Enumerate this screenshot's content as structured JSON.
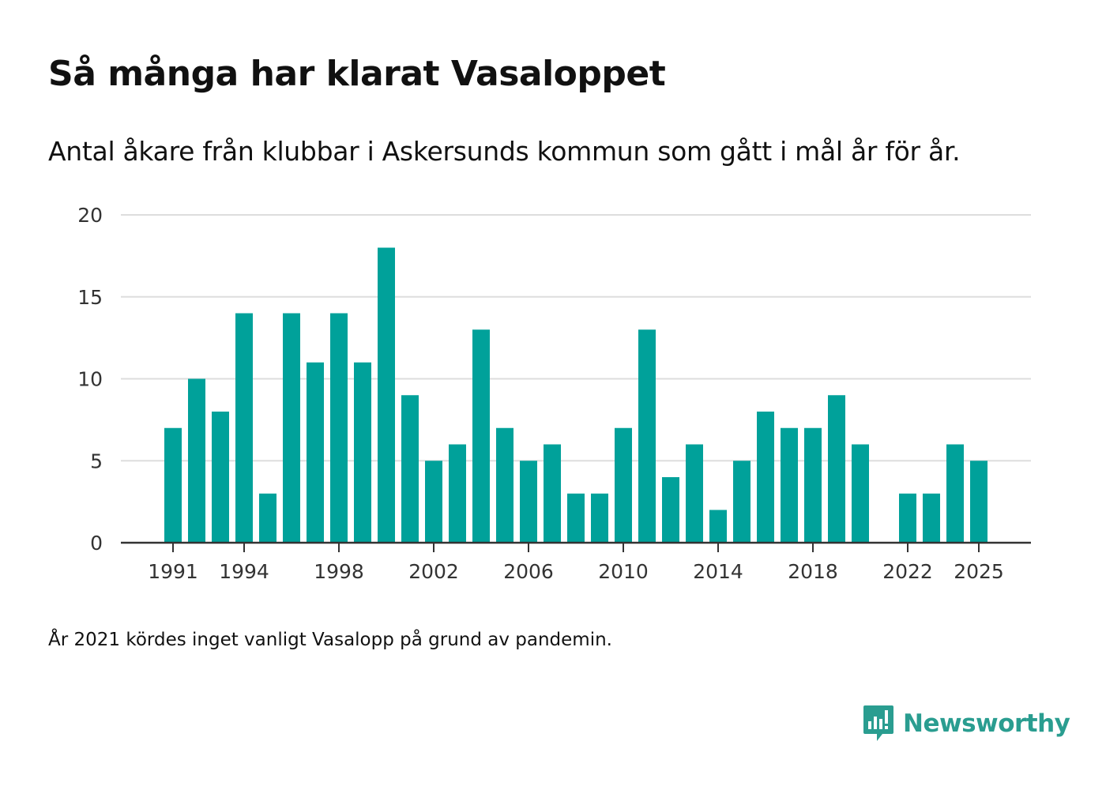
{
  "title": "Så många har klarat Vasaloppet",
  "subtitle": "Antal åkare från klubbar i Askersunds kommun som gått i mål år för år.",
  "note": "År 2021 kördes inget vanligt Vasalopp på grund av pandemin.",
  "brand": {
    "name": "Newsworthy",
    "icon": "newsworthy-logo-icon",
    "color": "#2a9d90"
  },
  "colors": {
    "bar": "#00a19a",
    "grid": "#dddddd",
    "axis": "#333333"
  },
  "chart_data": {
    "type": "bar",
    "title": "Så många har klarat Vasaloppet",
    "xlabel": "",
    "ylabel": "",
    "categories": [
      1991,
      1992,
      1993,
      1994,
      1995,
      1996,
      1997,
      1998,
      1999,
      2000,
      2001,
      2002,
      2003,
      2004,
      2005,
      2006,
      2007,
      2008,
      2009,
      2010,
      2011,
      2012,
      2013,
      2014,
      2015,
      2016,
      2017,
      2018,
      2019,
      2020,
      2021,
      2022,
      2023,
      2024,
      2025
    ],
    "values": [
      7,
      10,
      8,
      14,
      3,
      14,
      11,
      14,
      11,
      18,
      9,
      5,
      6,
      13,
      7,
      5,
      6,
      3,
      3,
      7,
      13,
      4,
      6,
      2,
      5,
      8,
      7,
      7,
      9,
      6,
      null,
      3,
      3,
      6,
      5
    ],
    "ylim": [
      0,
      20
    ],
    "yticks": [
      0,
      5,
      10,
      15,
      20
    ],
    "xticks": [
      "1991",
      "1994",
      "1998",
      "2002",
      "2006",
      "2010",
      "2014",
      "2018",
      "2022",
      "2025"
    ],
    "grid": true
  }
}
